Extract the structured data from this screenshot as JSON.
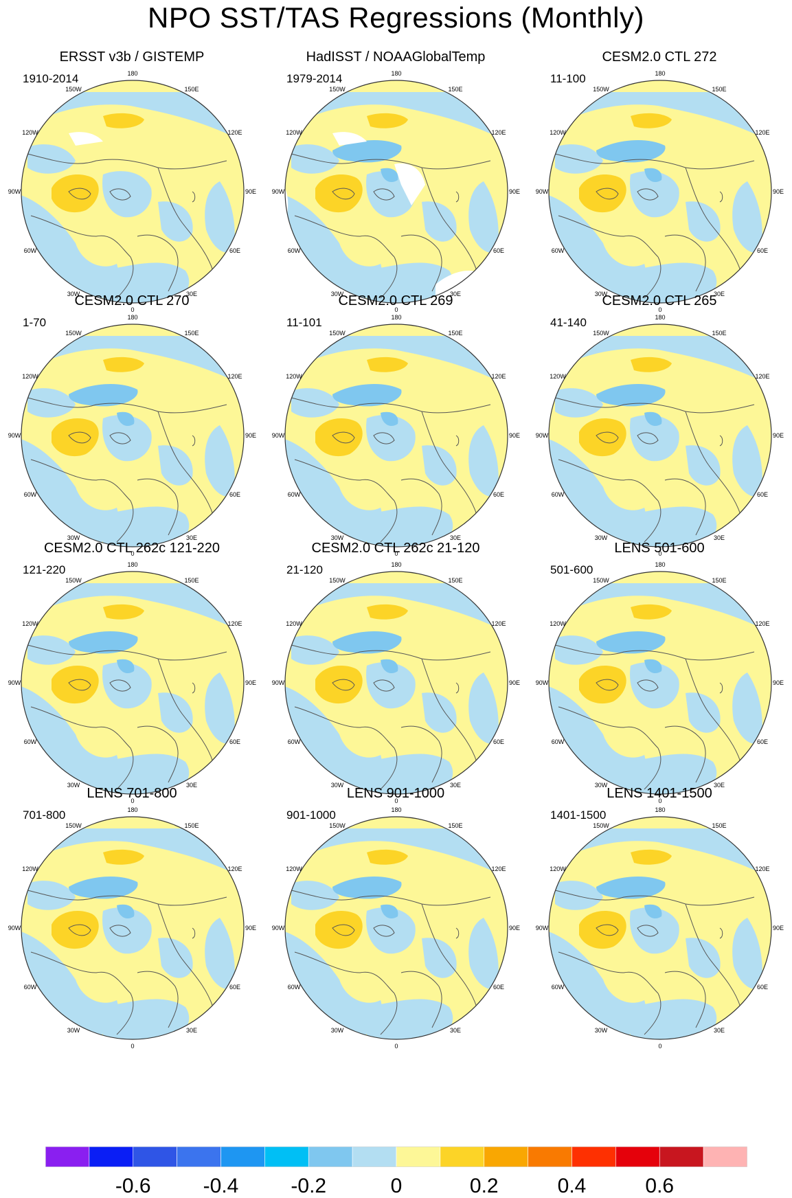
{
  "title": "NPO SST/TAS Regressions (Monthly)",
  "panels": [
    {
      "title": "ERSST v3b / GISTEMP",
      "years": "1910-2014",
      "pattern": "obs1"
    },
    {
      "title": "HadISST / NOAAGlobalTemp",
      "years": "1979-2014",
      "pattern": "obs2"
    },
    {
      "title": "CESM2.0 CTL 272",
      "years": "11-100",
      "pattern": "model"
    },
    {
      "title": "CESM2.0 CTL 270",
      "years": "1-70",
      "pattern": "model"
    },
    {
      "title": "CESM2.0 CTL 269",
      "years": "11-101",
      "pattern": "model"
    },
    {
      "title": "CESM2.0 CTL 265",
      "years": "41-140",
      "pattern": "model"
    },
    {
      "title": "CESM2.0 CTL 262c 121-220",
      "years": "121-220",
      "pattern": "model"
    },
    {
      "title": "CESM2.0 CTL 262c 21-120",
      "years": "21-120",
      "pattern": "model"
    },
    {
      "title": "LENS 501-600",
      "years": "501-600",
      "pattern": "model"
    },
    {
      "title": "LENS 701-800",
      "years": "701-800",
      "pattern": "model"
    },
    {
      "title": "LENS 901-1000",
      "years": "901-1000",
      "pattern": "model"
    },
    {
      "title": "LENS 1401-1500",
      "years": "1401-1500",
      "pattern": "model"
    }
  ],
  "longitude_labels": [
    "180",
    "150E",
    "120E",
    "90E",
    "60E",
    "30E",
    "0",
    "30W",
    "60W",
    "90W",
    "120W",
    "150W"
  ],
  "colorbar": {
    "colors": [
      "#8a1ff0",
      "#0a1ef5",
      "#2f55e6",
      "#3b74ee",
      "#1e96f2",
      "#00bff5",
      "#7fc7ef",
      "#b3def2",
      "#fdf797",
      "#fcd427",
      "#f9a702",
      "#f97a01",
      "#fe3001",
      "#e5010b",
      "#c8161f",
      "#feb3b3"
    ],
    "labels": [
      "-0.6",
      "-0.4",
      "-0.2",
      "0",
      "0.2",
      "0.4",
      "0.6"
    ]
  },
  "field_colors": {
    "neg_weak": "#b3def2",
    "neg_mid": "#7fc7ef",
    "pos_weak": "#fdf797",
    "pos_mid": "#fcd427",
    "missing": "#ffffff",
    "coast": "#555555"
  }
}
